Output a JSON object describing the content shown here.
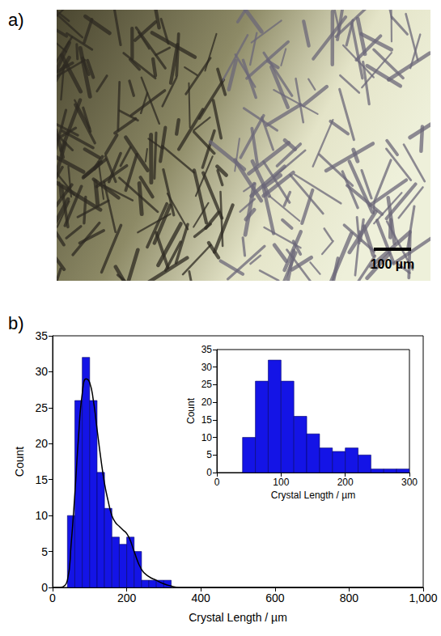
{
  "panel_a": {
    "letter": "a)",
    "scale_bar": "100 µm"
  },
  "chart_data": [
    {
      "type": "histogram",
      "letter": "b)",
      "bins": [
        40,
        60,
        80,
        100,
        120,
        140,
        160,
        180,
        200,
        220,
        240,
        260,
        280,
        300,
        320
      ],
      "counts": [
        10,
        26,
        32,
        26,
        16,
        11,
        7,
        6,
        7,
        5,
        1,
        1,
        1,
        1
      ],
      "color": "#1414e6",
      "fit": {
        "x": [
          0,
          20,
          40,
          50,
          60,
          70,
          80,
          90,
          100,
          110,
          120,
          130,
          140,
          150,
          160,
          170,
          180,
          190,
          200,
          210,
          220,
          240,
          260,
          280,
          300,
          320,
          340,
          400,
          1000
        ],
        "values": [
          0,
          0,
          1,
          6,
          13,
          21,
          27,
          29,
          28.5,
          26,
          22,
          18,
          14.5,
          12,
          10,
          9,
          8.5,
          8,
          7.5,
          6.5,
          5,
          2.5,
          1.5,
          1,
          0.5,
          0.2,
          0,
          0,
          0
        ],
        "color": "#000000"
      },
      "x_label": "Crystal Length / µm",
      "y_label": "Count",
      "xlim": [
        0,
        1000
      ],
      "xticks": [
        0,
        200,
        400,
        600,
        800,
        1000
      ],
      "ylim": [
        0,
        35
      ],
      "yticks": [
        0,
        5,
        10,
        15,
        20,
        25,
        30,
        35
      ],
      "grid": false
    },
    {
      "type": "histogram",
      "bins": [
        40,
        60,
        80,
        100,
        120,
        140,
        160,
        180,
        200,
        220,
        240,
        260,
        280,
        300
      ],
      "counts": [
        10,
        26,
        32,
        26,
        16,
        11,
        7,
        6,
        7,
        5,
        1,
        1,
        1
      ],
      "color": "#1414e6",
      "x_label": "Crystal Length / µm",
      "y_label": "Count",
      "xlim": [
        0,
        300
      ],
      "xticks": [
        0,
        100,
        200,
        300
      ],
      "ylim": [
        0,
        35
      ],
      "yticks": [
        0,
        5,
        10,
        15,
        20,
        25,
        30,
        35
      ],
      "grid": false
    }
  ]
}
